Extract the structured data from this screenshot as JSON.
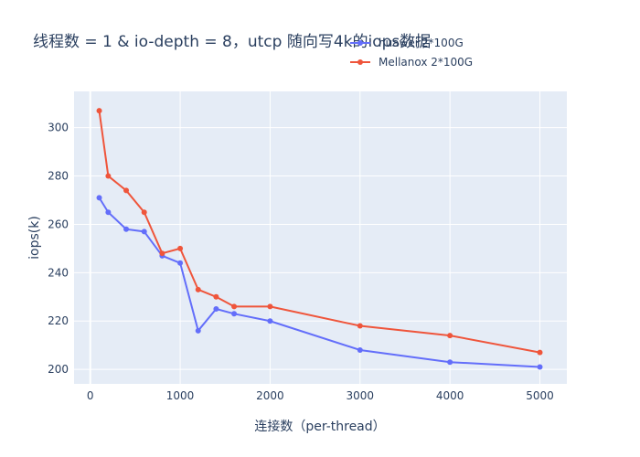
{
  "chart_data": {
    "type": "line",
    "title": "线程数 = 1 & io-depth = 8，utcp 随向写4k的iops数据",
    "xlabel": "连接数（per-thread）",
    "ylabel": "iops(k)",
    "xlim": [
      -180,
      5300
    ],
    "ylim": [
      194,
      315
    ],
    "x_ticks": [
      0,
      1000,
      2000,
      3000,
      4000,
      5000
    ],
    "y_ticks": [
      200,
      220,
      240,
      260,
      280,
      300
    ],
    "grid": true,
    "legend_position": "top-right",
    "series": [
      {
        "name": "huawei 2*100G",
        "color": "#636efa",
        "x": [
          100,
          200,
          400,
          600,
          800,
          1000,
          1200,
          1400,
          1600,
          2000,
          3000,
          4000,
          5000
        ],
        "y": [
          271,
          265,
          258,
          257,
          247,
          244,
          216,
          225,
          223,
          220,
          208,
          203,
          201
        ]
      },
      {
        "name": "Mellanox 2*100G",
        "color": "#ef553b",
        "x": [
          100,
          200,
          400,
          600,
          800,
          1000,
          1200,
          1400,
          1600,
          2000,
          3000,
          4000,
          5000
        ],
        "y": [
          307,
          280,
          274,
          265,
          248,
          250,
          233,
          230,
          226,
          226,
          218,
          214,
          207
        ]
      }
    ]
  }
}
